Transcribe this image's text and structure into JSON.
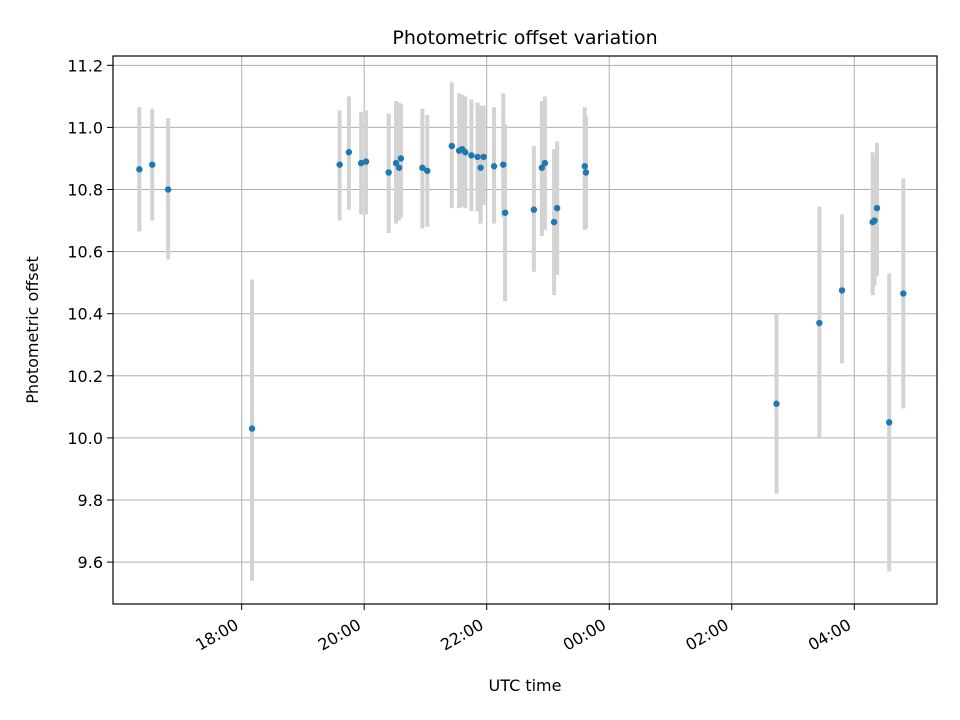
{
  "chart_data": {
    "type": "scatter",
    "title": "Photometric offset variation",
    "xlabel": "UTC time",
    "ylabel": "Photometric offset",
    "x_unit": "hours (UTC, values >= 24 are after midnight)",
    "xlim": [
      15.9,
      29.35
    ],
    "ylim": [
      9.465,
      11.23
    ],
    "grid": true,
    "x_ticks": [
      {
        "value": 18,
        "label": "18:00"
      },
      {
        "value": 20,
        "label": "20:00"
      },
      {
        "value": 22,
        "label": "22:00"
      },
      {
        "value": 24,
        "label": "00:00"
      },
      {
        "value": 26,
        "label": "02:00"
      },
      {
        "value": 28,
        "label": "04:00"
      }
    ],
    "y_ticks": [
      {
        "value": 9.6,
        "label": "9.6"
      },
      {
        "value": 9.8,
        "label": "9.8"
      },
      {
        "value": 10.0,
        "label": "10.0"
      },
      {
        "value": 10.2,
        "label": "10.2"
      },
      {
        "value": 10.4,
        "label": "10.4"
      },
      {
        "value": 10.6,
        "label": "10.6"
      },
      {
        "value": 10.8,
        "label": "10.8"
      },
      {
        "value": 11.0,
        "label": "11.0"
      },
      {
        "value": 11.2,
        "label": "11.2"
      }
    ],
    "colors": {
      "point": "#1f77b4",
      "errorbar": "#d3d3d3",
      "grid": "#b0b0b0"
    },
    "points": [
      {
        "x": 16.33,
        "y": 10.865,
        "lo": 10.665,
        "hi": 11.065
      },
      {
        "x": 16.54,
        "y": 10.88,
        "lo": 10.7,
        "hi": 11.06
      },
      {
        "x": 16.8,
        "y": 10.8,
        "lo": 10.575,
        "hi": 11.03
      },
      {
        "x": 18.17,
        "y": 10.03,
        "lo": 9.54,
        "hi": 10.51
      },
      {
        "x": 19.6,
        "y": 10.88,
        "lo": 10.7,
        "hi": 11.055
      },
      {
        "x": 19.75,
        "y": 10.92,
        "lo": 10.735,
        "hi": 11.1
      },
      {
        "x": 19.95,
        "y": 10.885,
        "lo": 10.72,
        "hi": 11.05
      },
      {
        "x": 20.03,
        "y": 10.89,
        "lo": 10.72,
        "hi": 11.055
      },
      {
        "x": 20.4,
        "y": 10.855,
        "lo": 10.66,
        "hi": 11.045
      },
      {
        "x": 20.52,
        "y": 10.885,
        "lo": 10.69,
        "hi": 11.085
      },
      {
        "x": 20.57,
        "y": 10.87,
        "lo": 10.7,
        "hi": 11.08
      },
      {
        "x": 20.6,
        "y": 10.9,
        "lo": 10.71,
        "hi": 11.075
      },
      {
        "x": 20.95,
        "y": 10.87,
        "lo": 10.675,
        "hi": 11.06
      },
      {
        "x": 21.03,
        "y": 10.86,
        "lo": 10.68,
        "hi": 11.04
      },
      {
        "x": 21.43,
        "y": 10.94,
        "lo": 10.74,
        "hi": 11.145
      },
      {
        "x": 21.55,
        "y": 10.925,
        "lo": 10.74,
        "hi": 11.11
      },
      {
        "x": 21.6,
        "y": 10.93,
        "lo": 10.745,
        "hi": 11.105
      },
      {
        "x": 21.65,
        "y": 10.92,
        "lo": 10.74,
        "hi": 11.1
      },
      {
        "x": 21.75,
        "y": 10.91,
        "lo": 10.73,
        "hi": 11.09
      },
      {
        "x": 21.85,
        "y": 10.905,
        "lo": 10.73,
        "hi": 11.08
      },
      {
        "x": 21.9,
        "y": 10.87,
        "lo": 10.69,
        "hi": 11.07
      },
      {
        "x": 21.95,
        "y": 10.905,
        "lo": 10.75,
        "hi": 11.07
      },
      {
        "x": 22.12,
        "y": 10.875,
        "lo": 10.69,
        "hi": 11.065
      },
      {
        "x": 22.27,
        "y": 10.88,
        "lo": 10.71,
        "hi": 11.11
      },
      {
        "x": 22.3,
        "y": 10.725,
        "lo": 10.44,
        "hi": 11.01
      },
      {
        "x": 22.77,
        "y": 10.735,
        "lo": 10.535,
        "hi": 10.94
      },
      {
        "x": 22.9,
        "y": 10.87,
        "lo": 10.65,
        "hi": 11.085
      },
      {
        "x": 22.95,
        "y": 10.885,
        "lo": 10.67,
        "hi": 11.1
      },
      {
        "x": 23.1,
        "y": 10.695,
        "lo": 10.46,
        "hi": 10.93
      },
      {
        "x": 23.15,
        "y": 10.74,
        "lo": 10.525,
        "hi": 10.955
      },
      {
        "x": 23.6,
        "y": 10.875,
        "lo": 10.67,
        "hi": 11.065
      },
      {
        "x": 23.62,
        "y": 10.855,
        "lo": 10.675,
        "hi": 11.035
      },
      {
        "x": 26.73,
        "y": 10.11,
        "lo": 9.82,
        "hi": 10.4
      },
      {
        "x": 27.43,
        "y": 10.37,
        "lo": 10.0,
        "hi": 10.745
      },
      {
        "x": 27.8,
        "y": 10.475,
        "lo": 10.24,
        "hi": 10.72
      },
      {
        "x": 28.3,
        "y": 10.695,
        "lo": 10.46,
        "hi": 10.92
      },
      {
        "x": 28.33,
        "y": 10.7,
        "lo": 10.49,
        "hi": 10.9
      },
      {
        "x": 28.37,
        "y": 10.74,
        "lo": 10.52,
        "hi": 10.95
      },
      {
        "x": 28.57,
        "y": 10.05,
        "lo": 9.57,
        "hi": 10.53
      },
      {
        "x": 28.8,
        "y": 10.465,
        "lo": 10.095,
        "hi": 10.835
      }
    ]
  }
}
